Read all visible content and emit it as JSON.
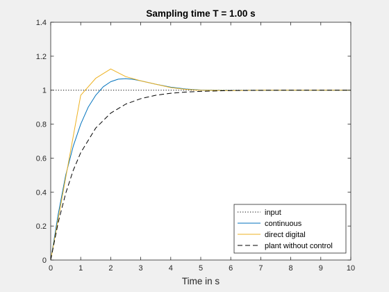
{
  "chart_data": {
    "type": "line",
    "title": "Sampling time T = 1.00 s",
    "xlabel": "Time in s",
    "ylabel": "",
    "xlim": [
      0,
      10
    ],
    "ylim": [
      0,
      1.4
    ],
    "xticks": [
      "0",
      "1",
      "2",
      "3",
      "4",
      "5",
      "6",
      "7",
      "8",
      "9",
      "10"
    ],
    "yticks": [
      "0",
      "0.2",
      "0.4",
      "0.6",
      "0.8",
      "1",
      "1.2",
      "1.4"
    ],
    "grid": false,
    "legend_position": "bottom-right",
    "series": [
      {
        "name": "input",
        "color": "#000000",
        "style": "dotted",
        "x": [
          0,
          10
        ],
        "y": [
          1,
          1
        ]
      },
      {
        "name": "continuous",
        "color": "#0072bd",
        "style": "solid",
        "x": [
          0,
          0.25,
          0.5,
          0.75,
          1.0,
          1.25,
          1.5,
          1.75,
          2.0,
          2.25,
          2.5,
          2.75,
          3.0,
          3.5,
          4.0,
          4.5,
          5.0,
          6.0,
          7.0,
          8.0,
          10.0
        ],
        "y": [
          0,
          0.27,
          0.5,
          0.67,
          0.8,
          0.9,
          0.97,
          1.02,
          1.05,
          1.065,
          1.068,
          1.064,
          1.055,
          1.035,
          1.018,
          1.007,
          1.001,
          0.999,
          1.0,
          1.0,
          1.0
        ]
      },
      {
        "name": "direct digital",
        "color": "#edb120",
        "style": "solid",
        "x": [
          0,
          1,
          1.5,
          2,
          2.5,
          3,
          3.5,
          4,
          4.5,
          5,
          6,
          7,
          8,
          10
        ],
        "y": [
          0,
          0.97,
          1.07,
          1.125,
          1.08,
          1.055,
          1.035,
          1.015,
          1.005,
          1.0,
          0.998,
          1.0,
          1.0,
          1.0
        ]
      },
      {
        "name": "plant without control",
        "color": "#000000",
        "style": "dashed",
        "x": [
          0,
          0.25,
          0.5,
          0.75,
          1.0,
          1.5,
          2.0,
          2.5,
          3.0,
          3.5,
          4.0,
          4.5,
          5.0,
          6.0,
          7.0,
          8.0,
          10.0
        ],
        "y": [
          0,
          0.221,
          0.393,
          0.528,
          0.632,
          0.777,
          0.865,
          0.918,
          0.95,
          0.97,
          0.982,
          0.989,
          0.993,
          0.998,
          0.999,
          1.0,
          1.0
        ]
      }
    ]
  }
}
